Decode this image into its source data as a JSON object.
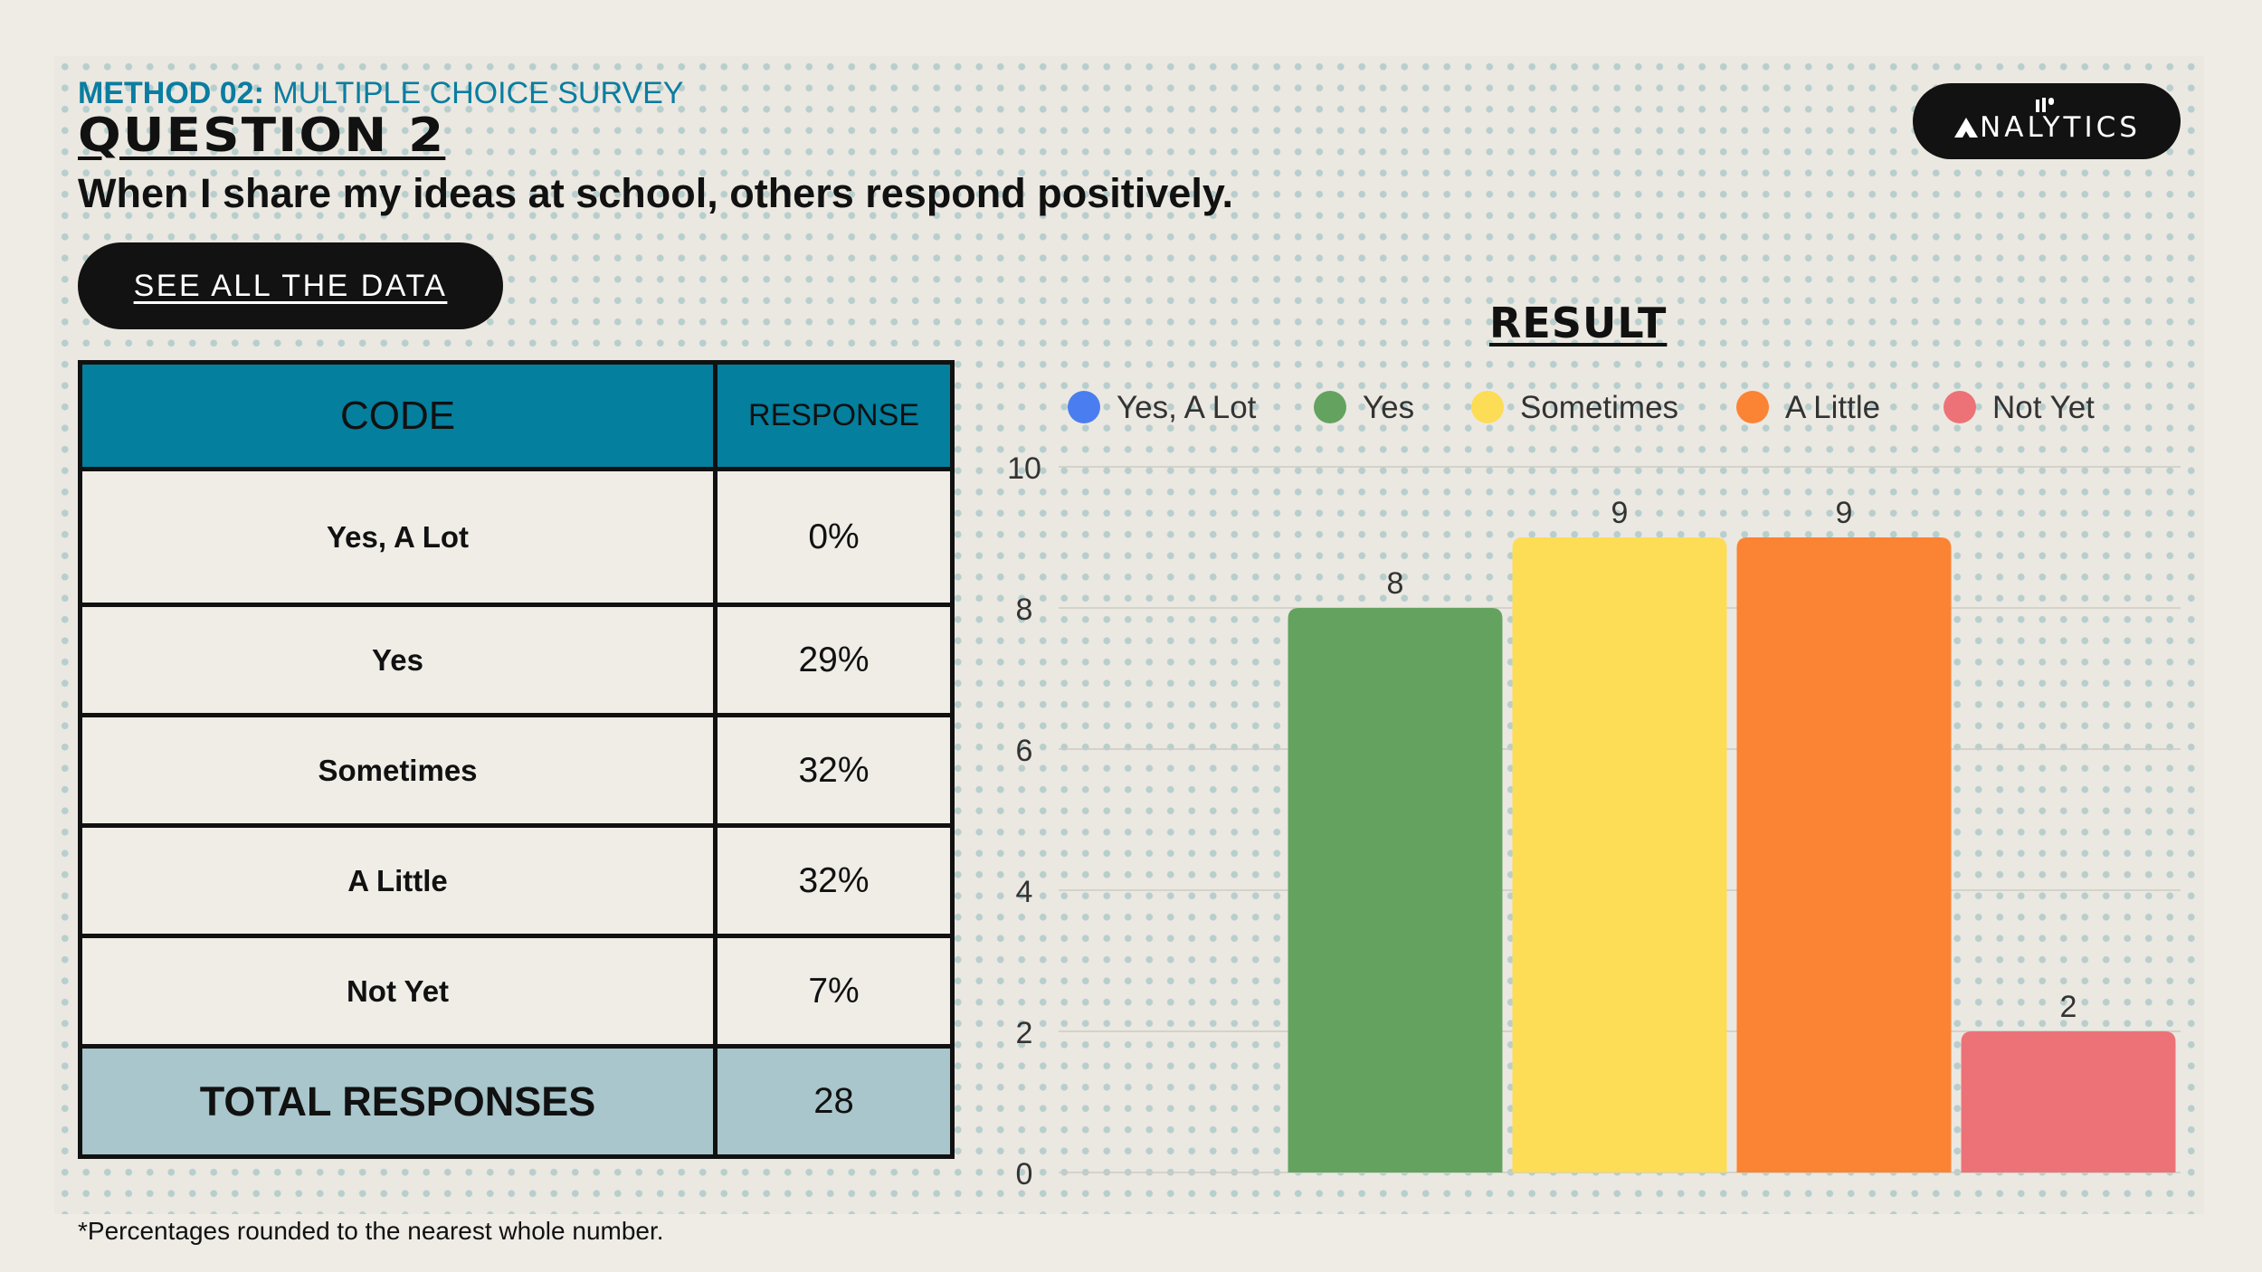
{
  "header": {
    "method_label": "METHOD 02:",
    "method_text": "MULTIPLE CHOICE SURVEY",
    "question_title": "QUESTION 2",
    "question_text": "When I share my ideas at school, others respond positively."
  },
  "button": {
    "label": "SEE ALL THE DATA"
  },
  "logo": {
    "text": "NALYTICS"
  },
  "table": {
    "headers": [
      "CODE",
      "RESPONSE"
    ],
    "rows": [
      {
        "code": "Yes, A Lot",
        "response": "0%"
      },
      {
        "code": "Yes",
        "response": "29%"
      },
      {
        "code": "Sometimes",
        "response": "32%"
      },
      {
        "code": "A Little",
        "response": "32%"
      },
      {
        "code": "Not Yet",
        "response": "7%"
      }
    ],
    "total_label": "TOTAL RESPONSES",
    "total_value": "28"
  },
  "footnote": "*Percentages rounded to the nearest whole number.",
  "chart_data": {
    "type": "bar",
    "title": "RESULT",
    "categories": [
      "Yes, A Lot",
      "Yes",
      "Sometimes",
      "A Little",
      "Not Yet"
    ],
    "values": [
      0,
      8,
      9,
      9,
      2
    ],
    "colors": [
      "#4a7ef0",
      "#63a35f",
      "#fddc56",
      "#fb8334",
      "#ec7278"
    ],
    "ylim": [
      0,
      10
    ],
    "yticks": [
      0,
      2,
      4,
      6,
      8,
      10
    ],
    "grid": true,
    "legend": "top",
    "xlabel": "",
    "ylabel": ""
  }
}
